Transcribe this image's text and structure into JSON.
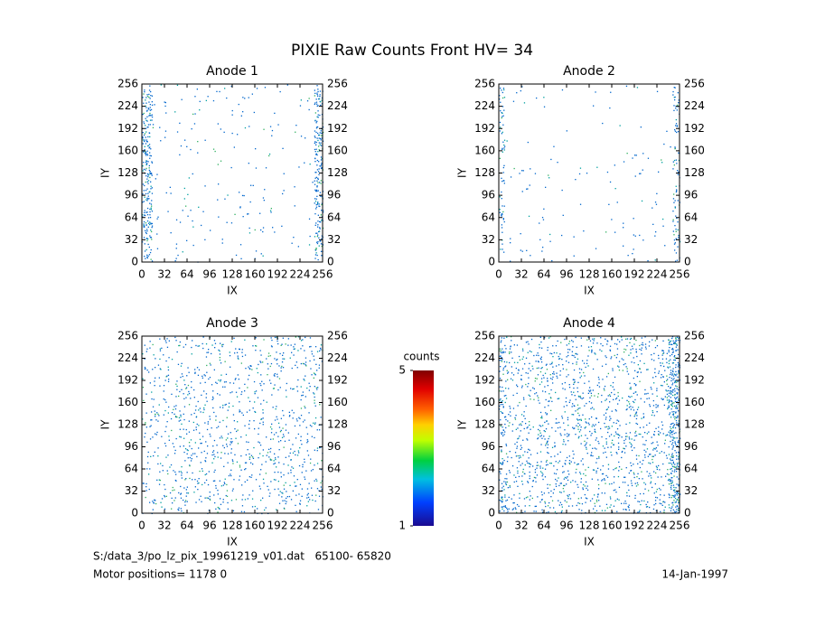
{
  "title": "PIXIE Raw Counts Front HV= 34",
  "chart_data": [
    {
      "type": "heatmap",
      "title": "Anode 1",
      "xlabel": "IX",
      "ylabel": "IY",
      "xlim": [
        0,
        256
      ],
      "ylim": [
        0,
        256
      ],
      "xticks": [
        0,
        32,
        64,
        96,
        128,
        160,
        192,
        224,
        256
      ],
      "yticks": [
        0,
        32,
        64,
        96,
        128,
        160,
        192,
        224,
        256
      ]
    },
    {
      "type": "heatmap",
      "title": "Anode 2",
      "xlabel": "IX",
      "ylabel": "IY",
      "xlim": [
        0,
        256
      ],
      "ylim": [
        0,
        256
      ],
      "xticks": [
        0,
        32,
        64,
        96,
        128,
        160,
        192,
        224,
        256
      ],
      "yticks": [
        0,
        32,
        64,
        96,
        128,
        160,
        192,
        224,
        256
      ]
    },
    {
      "type": "heatmap",
      "title": "Anode 3",
      "xlabel": "IX",
      "ylabel": "IY",
      "xlim": [
        0,
        256
      ],
      "ylim": [
        0,
        256
      ],
      "xticks": [
        0,
        32,
        64,
        96,
        128,
        160,
        192,
        224,
        256
      ],
      "yticks": [
        0,
        32,
        64,
        96,
        128,
        160,
        192,
        224,
        256
      ]
    },
    {
      "type": "heatmap",
      "title": "Anode 4",
      "xlabel": "IX",
      "ylabel": "IY",
      "xlim": [
        0,
        256
      ],
      "ylim": [
        0,
        256
      ],
      "xticks": [
        0,
        32,
        64,
        96,
        128,
        160,
        192,
        224,
        256
      ],
      "yticks": [
        0,
        32,
        64,
        96,
        128,
        160,
        192,
        224,
        256
      ]
    }
  ],
  "colorbar": {
    "label": "counts",
    "clim": [
      1,
      5
    ],
    "ticks": [
      1,
      5
    ]
  },
  "footer": {
    "file": "S:/data_3/po_lz_pix_19961219_v01.dat   65100- 65820",
    "motor": "Motor positions= 1178 0",
    "date": "14-Jan-1997"
  }
}
